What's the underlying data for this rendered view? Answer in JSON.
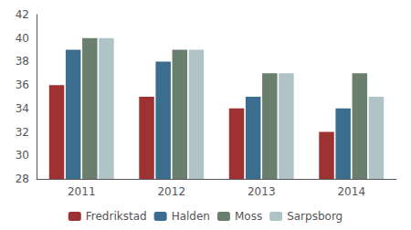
{
  "chart_data": {
    "type": "bar",
    "categories": [
      "2011",
      "2012",
      "2013",
      "2014"
    ],
    "series": [
      {
        "name": "Fredrikstad",
        "color": "#9e3132",
        "values": [
          36,
          35,
          34,
          32
        ]
      },
      {
        "name": "Halden",
        "color": "#3b6d8f",
        "values": [
          39,
          38,
          35,
          34
        ]
      },
      {
        "name": "Moss",
        "color": "#6b7f6e",
        "values": [
          40,
          39,
          37,
          37
        ]
      },
      {
        "name": "Sarpsborg",
        "color": "#b0c4c8",
        "values": [
          40,
          39,
          37,
          35
        ]
      }
    ],
    "ylim": [
      28,
      42
    ],
    "yticks": [
      28,
      30,
      32,
      34,
      36,
      38,
      40,
      42
    ],
    "grid": false,
    "legend": "bottom"
  }
}
